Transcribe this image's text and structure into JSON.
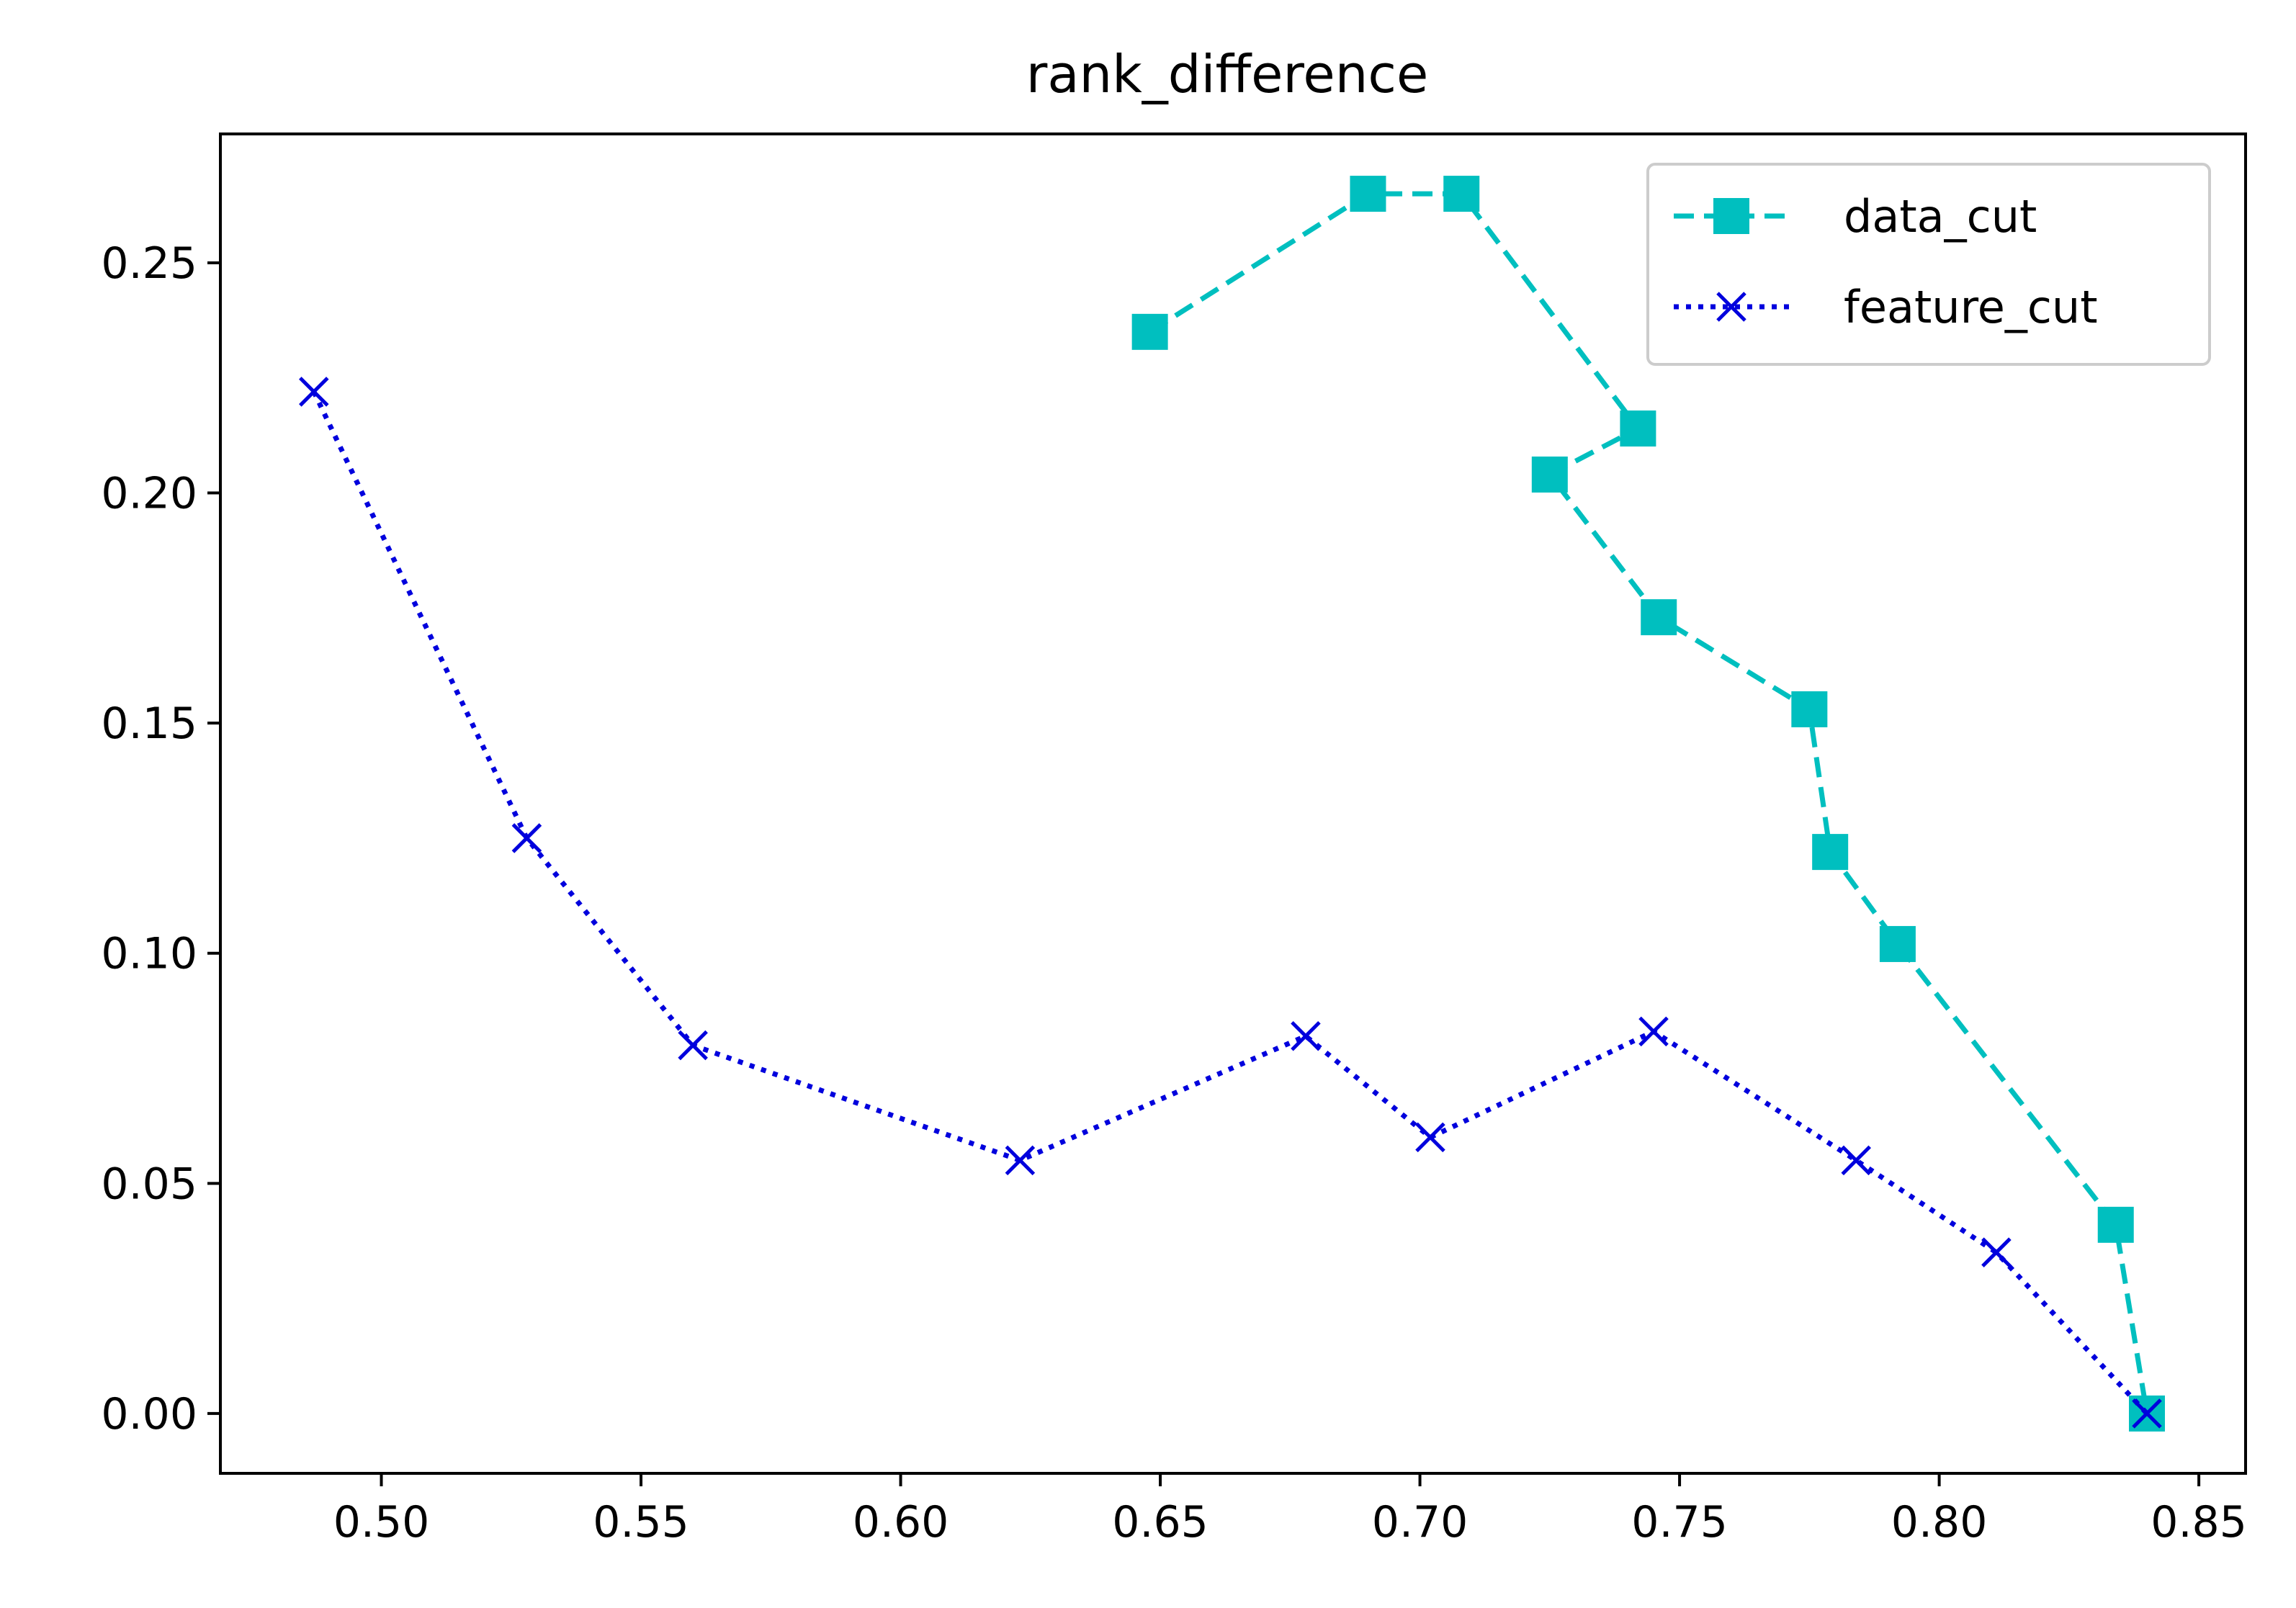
{
  "chart_data": {
    "type": "line",
    "title": "rank_difference",
    "xlabel": "",
    "ylabel": "",
    "xlim": [
      0.469,
      0.859
    ],
    "ylim": [
      -0.013,
      0.278
    ],
    "x_ticks": [
      0.5,
      0.55,
      0.6,
      0.65,
      0.7,
      0.75,
      0.8,
      0.85
    ],
    "x_tick_labels": [
      "0.50",
      "0.55",
      "0.60",
      "0.65",
      "0.70",
      "0.75",
      "0.80",
      "0.85"
    ],
    "y_ticks": [
      0.0,
      0.05,
      0.1,
      0.15,
      0.2,
      0.25
    ],
    "y_tick_labels": [
      "0.00",
      "0.05",
      "0.10",
      "0.15",
      "0.20",
      "0.25"
    ],
    "grid": false,
    "legend_position": "top-right",
    "series": [
      {
        "name": "data_cut",
        "color": "#00bfbf",
        "line_style": "dashed",
        "marker": "square",
        "x": [
          0.648,
          0.69,
          0.708,
          0.742,
          0.725,
          0.746,
          0.775,
          0.779,
          0.792,
          0.834,
          0.84
        ],
        "y": [
          0.235,
          0.265,
          0.265,
          0.214,
          0.204,
          0.173,
          0.153,
          0.122,
          0.102,
          0.041,
          0.0
        ]
      },
      {
        "name": "feature_cut",
        "color": "#0000dd",
        "line_style": "dotted",
        "marker": "x",
        "x": [
          0.487,
          0.528,
          0.56,
          0.623,
          0.678,
          0.702,
          0.745,
          0.784,
          0.811,
          0.84
        ],
        "y": [
          0.222,
          0.125,
          0.08,
          0.055,
          0.082,
          0.06,
          0.083,
          0.055,
          0.035,
          0.0
        ]
      }
    ]
  }
}
